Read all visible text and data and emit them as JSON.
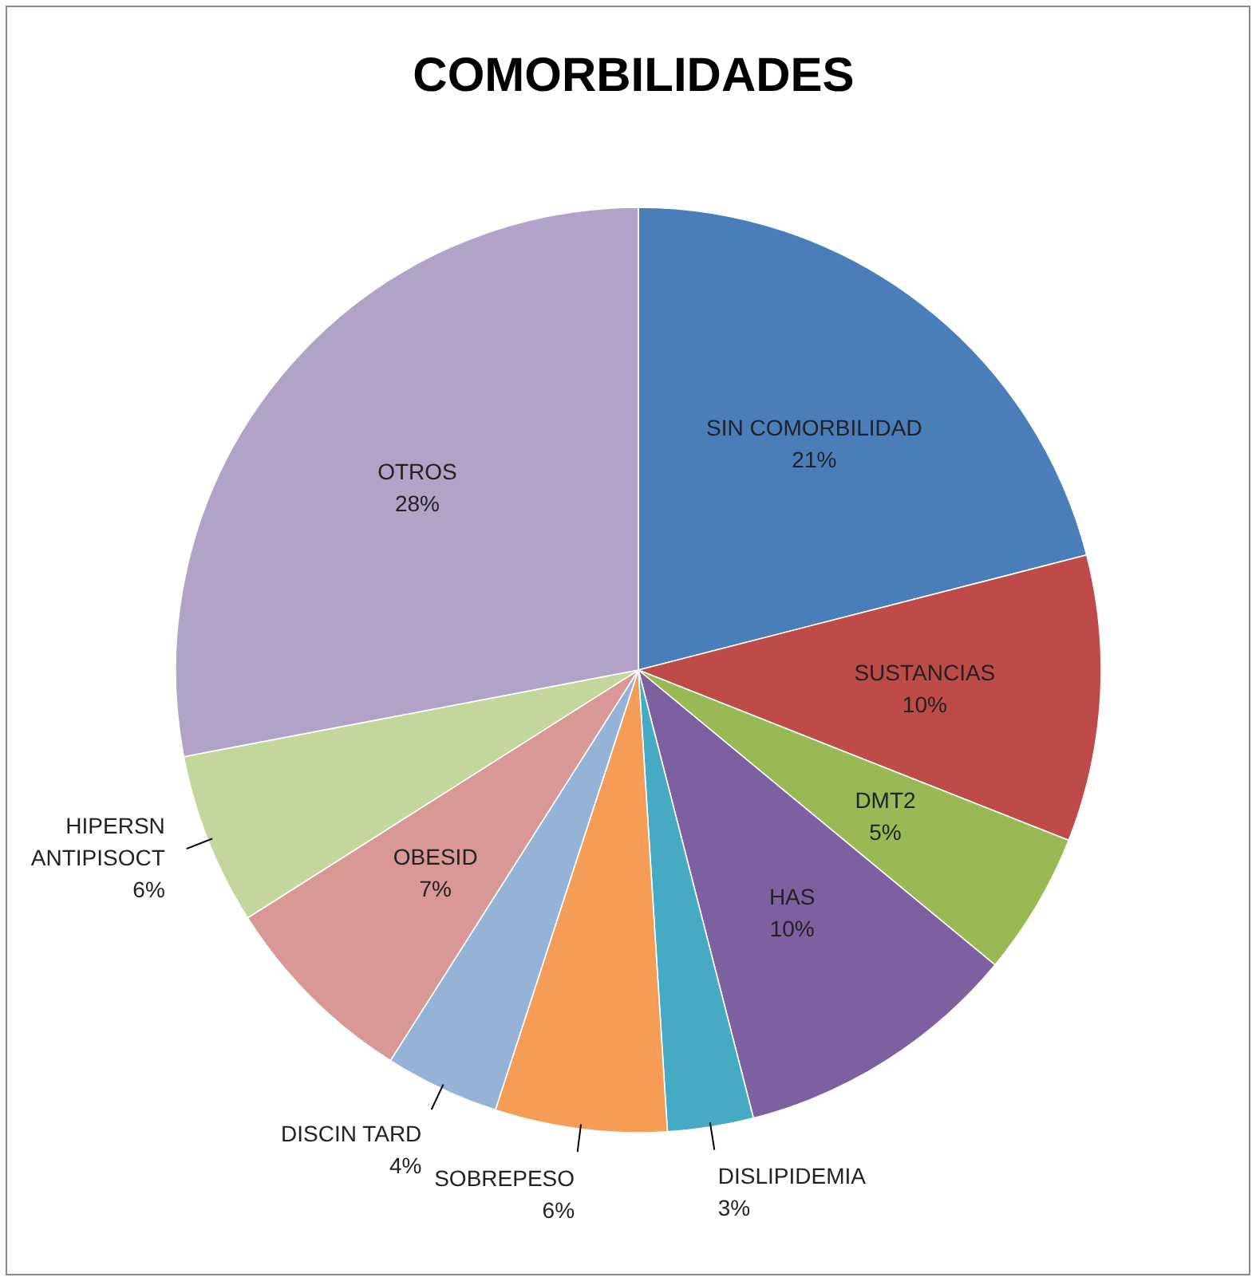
{
  "chart_data": {
    "type": "pie",
    "title": "COMORBILIDADES",
    "categories": [
      "SIN COMORBILIDAD",
      "SUSTANCIAS",
      "DMT2",
      "HAS",
      "DISLIPIDEMIA",
      "SOBREPESO",
      "DISCIN TARD",
      "OBESID",
      "HIPERSN ANTIPISOCT",
      "OTROS"
    ],
    "values": [
      21,
      10,
      5,
      10,
      3,
      6,
      4,
      7,
      6,
      28
    ],
    "colors": [
      "#4a7ebb",
      "#be4b48",
      "#98b954",
      "#7d60a0",
      "#46aac5",
      "#f59d56",
      "#95b3d7",
      "#d99795",
      "#c3d69b",
      "#b3a2c7"
    ],
    "value_labels": [
      "21%",
      "10%",
      "5%",
      "10%",
      "3%",
      "6%",
      "4%",
      "7%",
      "6%",
      "28%"
    ],
    "legend": false
  }
}
